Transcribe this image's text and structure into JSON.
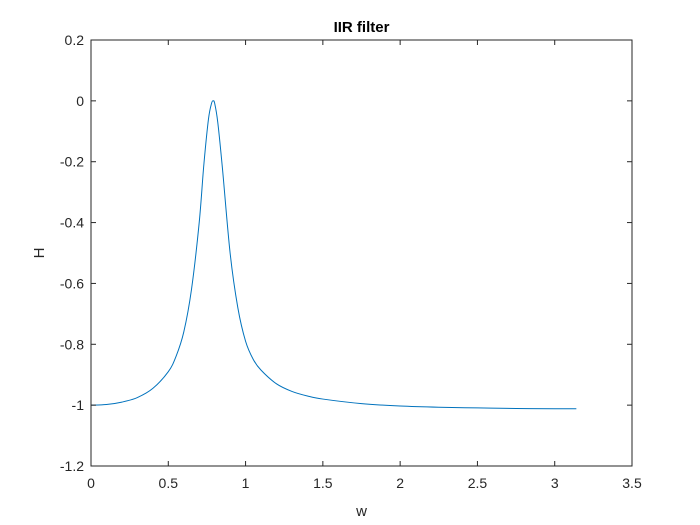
{
  "chart_data": {
    "type": "line",
    "title": "IIR filter",
    "xlabel": "w",
    "ylabel": "H",
    "xlim": [
      0,
      3.5
    ],
    "ylim": [
      -1.2,
      0.2
    ],
    "xticks": [
      0,
      0.5,
      1,
      1.5,
      2,
      2.5,
      3,
      3.5
    ],
    "xtick_labels": [
      "0",
      "0.5",
      "1",
      "1.5",
      "2",
      "2.5",
      "3",
      "3.5"
    ],
    "yticks": [
      0.2,
      0,
      -0.2,
      -0.4,
      -0.6,
      -0.8,
      -1,
      -1.2
    ],
    "ytick_labels": [
      "0.2",
      "0",
      "-0.2",
      "-0.4",
      "-0.6",
      "-0.8",
      "-1",
      "-1.2"
    ],
    "grid": false,
    "box": true,
    "series": [
      {
        "color": "#0072BD",
        "x": [
          0,
          0.1,
          0.2,
          0.3,
          0.4,
          0.5,
          0.55,
          0.6,
          0.65,
          0.7,
          0.73,
          0.76,
          0.78,
          0.79,
          0.8,
          0.82,
          0.85,
          0.9,
          0.95,
          1.0,
          1.05,
          1.1,
          1.2,
          1.3,
          1.4,
          1.5,
          1.75,
          2.0,
          2.25,
          2.5,
          2.75,
          3.0,
          3.14
        ],
        "y": [
          -1.0,
          -0.998,
          -0.99,
          -0.975,
          -0.945,
          -0.89,
          -0.84,
          -0.76,
          -0.62,
          -0.4,
          -0.21,
          -0.06,
          -0.008,
          0.0,
          -0.008,
          -0.07,
          -0.22,
          -0.5,
          -0.68,
          -0.79,
          -0.85,
          -0.885,
          -0.93,
          -0.955,
          -0.97,
          -0.98,
          -0.995,
          -1.003,
          -1.007,
          -1.009,
          -1.011,
          -1.012,
          -1.012
        ]
      }
    ]
  }
}
